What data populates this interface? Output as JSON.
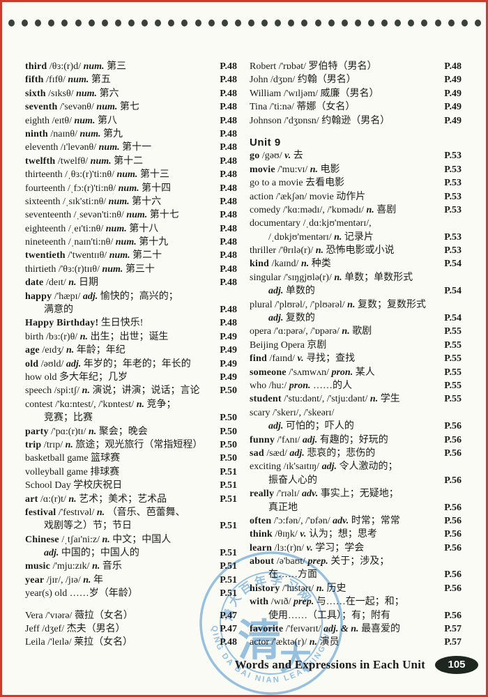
{
  "page": {
    "bg_color": "#fbfbf5",
    "frame_color": "#cf3a2c",
    "dot_color": "#3a413c",
    "dots_count": 36,
    "footer": {
      "label": "Words and Expressions in Each Unit",
      "page_number": "105",
      "badge_color": "#1e2620"
    }
  },
  "watermark": {
    "color": "#7bb0da",
    "ring_text": "QING DA BAI NIAN LEARNING WEBSITE",
    "arc_text": "清大百年学习网",
    "center_main": "清",
    "center_sub": "大"
  },
  "columns": {
    "left": [
      {
        "w": "third",
        "b": 1,
        "t": "/θɜ:(r)d/",
        "pos": "num.",
        "d": "第三",
        "p": "P.48"
      },
      {
        "w": "fifth",
        "b": 1,
        "t": "/fɪfθ/",
        "pos": "num.",
        "d": "第五",
        "p": "P.48"
      },
      {
        "w": "sixth",
        "b": 1,
        "t": "/sɪksθ/",
        "pos": "num.",
        "d": "第六",
        "p": "P.48"
      },
      {
        "w": "seventh",
        "b": 1,
        "t": "/'sevənθ/",
        "pos": "num.",
        "d": "第七",
        "p": "P.48"
      },
      {
        "w": "eighth",
        "b": 0,
        "t": "/eɪtθ/",
        "pos": "num.",
        "d": "第八",
        "p": "P.48"
      },
      {
        "w": "ninth",
        "b": 1,
        "t": "/naɪnθ/",
        "pos": "num.",
        "d": "第九",
        "p": "P.48"
      },
      {
        "w": "eleventh",
        "b": 0,
        "t": "/ɪ'levənθ/",
        "pos": "num.",
        "d": "第十一",
        "p": "P.48"
      },
      {
        "w": "twelfth",
        "b": 1,
        "t": "/twelfθ/",
        "pos": "num.",
        "d": "第十二",
        "p": "P.48"
      },
      {
        "w": "thirteenth",
        "b": 0,
        "t": "/ˌθɜ:(r)'ti:nθ/",
        "pos": "num.",
        "d": "第十三",
        "p": "P.48"
      },
      {
        "w": "fourteenth",
        "b": 0,
        "t": "/ˌfɔ:(r)'ti:nθ/",
        "pos": "num.",
        "d": "第十四",
        "p": "P.48"
      },
      {
        "w": "sixteenth",
        "b": 0,
        "t": "/ˌsɪk'sti:nθ/",
        "pos": "num.",
        "d": "第十六",
        "p": "P.48"
      },
      {
        "w": "seventeenth",
        "b": 0,
        "t": "/ˌsevən'ti:nθ/",
        "pos": "num.",
        "d": "第十七",
        "p": "P.48"
      },
      {
        "w": "eighteenth",
        "b": 0,
        "t": "/ˌeɪ'ti:nθ/",
        "pos": "num.",
        "d": "第十八",
        "p": "P.48"
      },
      {
        "w": "nineteenth",
        "b": 0,
        "t": "/ˌnaɪn'ti:nθ/",
        "pos": "num.",
        "d": "第十九",
        "p": "P.48"
      },
      {
        "w": "twentieth",
        "b": 1,
        "t": "/'twentɪɪθ/",
        "pos": "num.",
        "d": "第二十",
        "p": "P.48"
      },
      {
        "w": "thirtieth",
        "b": 0,
        "t": "/'θɜ:(r)tɪɪθ/",
        "pos": "num.",
        "d": "第三十",
        "p": "P.48"
      },
      {
        "w": "date",
        "b": 1,
        "t": "/deɪt/",
        "pos": "n.",
        "d": "日期",
        "p": "P.48"
      },
      {
        "w": "happy",
        "b": 1,
        "t": "/'hæpɪ/",
        "pos": "adj.",
        "d": "愉快的；高兴的；"
      },
      {
        "ind": 1,
        "d": "满意的",
        "p": "P.48"
      },
      {
        "w": "Happy Birthday!",
        "b": 1,
        "d": "生日快乐!",
        "p": "P.48"
      },
      {
        "w": "birth",
        "b": 0,
        "t": "/bɜ:(r)θ/",
        "pos": "n.",
        "d": "出生；出世；诞生",
        "p": "P.49"
      },
      {
        "w": "age",
        "b": 1,
        "t": "/eɪdʒ/",
        "pos": "n.",
        "d": "年龄；年纪",
        "p": "P.49"
      },
      {
        "w": "old",
        "b": 1,
        "t": "/əʊld/",
        "pos": "adj.",
        "d": "年岁的；年老的；年长的",
        "p": "P.49"
      },
      {
        "w": "how old",
        "b": 0,
        "d": "多大年纪；几岁",
        "p": "P.49"
      },
      {
        "w": "speech",
        "b": 0,
        "t": "/spi:tʃ/",
        "pos": "n.",
        "d": "演说；讲演；说话；言论",
        "p": "P.50"
      },
      {
        "w": "contest",
        "b": 0,
        "t": "/'kɑ:ntest/, /'kɒntest/",
        "pos": "n.",
        "d": "竞争；"
      },
      {
        "ind": 1,
        "d": "竞赛；比赛",
        "p": "P.50"
      },
      {
        "w": "party",
        "b": 1,
        "t": "/'pɑ:(r)tɪ/",
        "pos": "n.",
        "d": "聚会；晚会",
        "p": "P.50"
      },
      {
        "w": "trip",
        "b": 1,
        "t": "/trɪp/",
        "pos": "n.",
        "d": "旅途；观光旅行（常指短程）",
        "p": "P.50"
      },
      {
        "w": "basketball game",
        "b": 0,
        "d": "篮球赛",
        "p": "P.50"
      },
      {
        "w": "volleyball game",
        "b": 0,
        "d": "排球赛",
        "p": "P.51"
      },
      {
        "w": "School Day",
        "b": 0,
        "d": "学校庆祝日",
        "p": "P.51"
      },
      {
        "w": "art",
        "b": 1,
        "t": "/ɑ:(r)t/",
        "pos": "n.",
        "d": "艺术；美术；艺术品",
        "p": "P.51"
      },
      {
        "w": "festival",
        "b": 1,
        "t": "/'festɪvəl/",
        "pos": "n.",
        "d": "（音乐、芭蕾舞、"
      },
      {
        "ind": 1,
        "d": "戏剧等之）节；节日",
        "p": "P.51"
      },
      {
        "w": "Chinese",
        "b": 1,
        "t": "/ˌtʃaɪ'ni:z/",
        "pos": "n.",
        "d": "中文；中国人"
      },
      {
        "ind": 1,
        "pos": "adj.",
        "d": "中国的；中国人的",
        "p": "P.51"
      },
      {
        "w": "music",
        "b": 1,
        "t": "/'mju:zɪk/",
        "pos": "n.",
        "d": "音乐",
        "p": "P.51"
      },
      {
        "w": "year",
        "b": 1,
        "t": "/jɪr/, /jɪə/",
        "pos": "n.",
        "d": "年",
        "p": "P.51"
      },
      {
        "w": "year(s) old",
        "b": 0,
        "d": "……岁（年龄）",
        "p": "P.51"
      },
      {
        "gap": 1
      },
      {
        "w": "Vera",
        "b": 0,
        "t": "/'vɪərə/",
        "d": "薇拉（女名）",
        "p": "P.47"
      },
      {
        "w": "Jeff",
        "b": 0,
        "t": "/dʒef/",
        "d": "杰夫（男名）",
        "p": "P.47"
      },
      {
        "w": "Leila",
        "b": 0,
        "t": "/'leɪlə/",
        "d": "莱拉（女名）",
        "p": "P.48"
      }
    ],
    "right": [
      {
        "w": "Robert",
        "b": 0,
        "t": "/'rɒbət/",
        "d": "罗伯特（男名）",
        "p": "P.48"
      },
      {
        "w": "John",
        "b": 0,
        "t": "/dʒɒn/",
        "d": "约翰（男名）",
        "p": "P.49"
      },
      {
        "w": "William",
        "b": 0,
        "t": "/'wɪljəm/",
        "d": "威廉（男名）",
        "p": "P.49"
      },
      {
        "w": "Tina",
        "b": 0,
        "t": "/'ti:nə/",
        "d": "蒂娜（女名）",
        "p": "P.49"
      },
      {
        "w": "Johnson",
        "b": 0,
        "t": "/'dʒɒnsn/",
        "d": "约翰逊（男名）",
        "p": "P.49"
      },
      {
        "gap": 1
      },
      {
        "heading": "Unit 9"
      },
      {
        "w": "go",
        "b": 1,
        "t": "/gəʊ/",
        "pos": "v.",
        "d": "去",
        "p": "P.53"
      },
      {
        "w": "movie",
        "b": 1,
        "t": "/'mu:vɪ/",
        "pos": "n.",
        "d": "电影",
        "p": "P.53"
      },
      {
        "w": "go to a movie",
        "b": 0,
        "d": "去看电影",
        "p": "P.53"
      },
      {
        "w": "action",
        "b": 0,
        "t": "/'ækʃən/ movie",
        "d": "动作片",
        "p": "P.53"
      },
      {
        "w": "comedy",
        "b": 0,
        "t": "/'kɑ:mədɪ/, /'kɒmədɪ/",
        "pos": "n.",
        "d": "喜剧",
        "p": "P.53"
      },
      {
        "w": "documentary",
        "b": 0,
        "t": "/ˌdɑ:kjʊ'mentərɪ/,"
      },
      {
        "ind": 1,
        "t": "/ˌdɒkjʊ'mentərɪ/",
        "pos": "n.",
        "d": "记录片",
        "p": "P.53"
      },
      {
        "w": "thriller",
        "b": 0,
        "t": "/'θrɪlə(r)/",
        "pos": "n.",
        "d": "恐怖电影或小说",
        "p": "P.53"
      },
      {
        "w": "kind",
        "b": 1,
        "t": "/kaɪnd/",
        "pos": "n.",
        "d": "种类",
        "p": "P.54"
      },
      {
        "w": "singular",
        "b": 0,
        "t": "/'sɪŋgjʊlə(r)/",
        "pos": "n.",
        "d": "单数；单数形式"
      },
      {
        "ind": 1,
        "pos": "adj.",
        "d": "单数的",
        "p": "P.54"
      },
      {
        "w": "plural",
        "b": 0,
        "t": "/'plʊrəl/, /'plʊərəl/",
        "pos": "n.",
        "d": "复数；复数形式"
      },
      {
        "ind": 1,
        "pos": "adj.",
        "d": "复数的",
        "p": "P.54"
      },
      {
        "w": "opera",
        "b": 0,
        "t": "/'ɑ:pərə/, /'ɒpərə/",
        "pos": "n.",
        "d": "歌剧",
        "p": "P.55"
      },
      {
        "w": "Beijing Opera",
        "b": 0,
        "d": "京剧",
        "p": "P.55"
      },
      {
        "w": "find",
        "b": 1,
        "t": "/faɪnd/",
        "pos": "v.",
        "d": "寻找；查找",
        "p": "P.55"
      },
      {
        "w": "someone",
        "b": 1,
        "t": "/'sʌmwʌn/",
        "pos": "pron.",
        "d": "某人",
        "p": "P.55"
      },
      {
        "w": "who",
        "b": 0,
        "t": "/hu:/",
        "pos": "pron.",
        "d": "……的人",
        "p": "P.55"
      },
      {
        "w": "student",
        "b": 1,
        "t": "/'stu:dənt/, /'stju:dənt/",
        "pos": "n.",
        "d": "学生",
        "p": "P.55"
      },
      {
        "w": "scary",
        "b": 0,
        "t": "/'skerɪ/, /'skeərɪ/"
      },
      {
        "ind": 1,
        "pos": "adj.",
        "d": "可怕的；吓人的",
        "p": "P.56"
      },
      {
        "w": "funny",
        "b": 1,
        "t": "/'fʌnɪ/",
        "pos": "adj.",
        "d": "有趣的；好玩的",
        "p": "P.56"
      },
      {
        "w": "sad",
        "b": 1,
        "t": "/sæd/",
        "pos": "adj.",
        "d": "悲哀的；悲伤的",
        "p": "P.56"
      },
      {
        "w": "exciting",
        "b": 0,
        "t": "/ɪk'saɪtɪŋ/",
        "pos": "adj.",
        "d": "令人激动的；"
      },
      {
        "ind": 1,
        "d": "振奋人心的",
        "p": "P.56"
      },
      {
        "w": "really",
        "b": 1,
        "t": "/'rɪəlɪ/",
        "pos": "adv.",
        "d": "事实上；无疑地；"
      },
      {
        "ind": 1,
        "d": "真正地",
        "p": "P.56"
      },
      {
        "w": "often",
        "b": 1,
        "t": "/'ɔ:fən/, /'ɒfən/",
        "pos": "adv.",
        "d": "时常；常常",
        "p": "P.56"
      },
      {
        "w": "think",
        "b": 1,
        "t": "/θɪŋk/",
        "pos": "v.",
        "d": "认为；想；思考",
        "p": "P.56"
      },
      {
        "w": "learn",
        "b": 1,
        "t": "/lɜ:(r)n/",
        "pos": "v.",
        "d": "学习；学会",
        "p": "P.56"
      },
      {
        "w": "about",
        "b": 1,
        "t": "/ə'baʊt/",
        "pos": "prep.",
        "d": "关于；涉及；"
      },
      {
        "ind": 1,
        "d": "在……方面",
        "p": "P.56"
      },
      {
        "w": "history",
        "b": 1,
        "t": "/'hɪstərɪ/",
        "pos": "n.",
        "d": "历史",
        "p": "P.56"
      },
      {
        "w": "with",
        "b": 1,
        "t": "/wɪð/",
        "pos": "prep.",
        "d": "与……在一起；和；"
      },
      {
        "ind": 1,
        "d": "使用……（工具）；有；附有",
        "p": "P.56"
      },
      {
        "w": "favorite",
        "b": 1,
        "t": "/'feɪvərɪt/",
        "pos": "adj. & n.",
        "d": "最喜爱的",
        "p": "P.57"
      },
      {
        "w": "actor",
        "b": 0,
        "t": "/'æktə(r)/",
        "pos": "n.",
        "d": "演员",
        "p": "P.57"
      }
    ]
  }
}
